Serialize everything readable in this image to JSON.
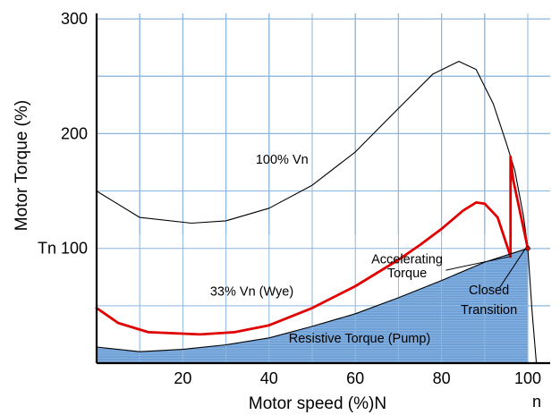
{
  "chart_data": {
    "type": "line",
    "xlabel": "Motor speed (%)N",
    "ylabel": "Motor Torque (%)",
    "x_ticks": [
      {
        "value": 20,
        "label": "20"
      },
      {
        "value": 40,
        "label": "40"
      },
      {
        "value": 60,
        "label": "60"
      },
      {
        "value": 80,
        "label": "80"
      },
      {
        "value": 100,
        "label": "100"
      }
    ],
    "y_ticks": [
      {
        "value": 300,
        "label": "300"
      },
      {
        "value": 200,
        "label": "200"
      },
      {
        "value": 100,
        "label": "Tn 100"
      }
    ],
    "x_end_label": "n",
    "xlim": [
      0,
      112
    ],
    "ylim": [
      0,
      300
    ],
    "grid": true,
    "series": [
      {
        "name": "100% Vn",
        "color": "#000000",
        "points": [
          [
            0,
            150
          ],
          [
            10,
            127
          ],
          [
            22,
            122
          ],
          [
            30,
            124
          ],
          [
            40,
            135
          ],
          [
            50,
            155
          ],
          [
            60,
            184
          ],
          [
            70,
            222
          ],
          [
            78,
            252
          ],
          [
            84,
            263
          ],
          [
            88,
            256
          ],
          [
            92,
            226
          ],
          [
            95,
            192
          ],
          [
            97,
            168
          ],
          [
            99,
            128
          ],
          [
            100,
            100
          ],
          [
            101,
            45
          ],
          [
            102,
            0
          ]
        ]
      },
      {
        "name": "33% Vn (Wye)",
        "color": "#e00000",
        "points": [
          [
            0,
            48
          ],
          [
            5,
            35
          ],
          [
            12,
            27
          ],
          [
            24,
            25
          ],
          [
            32,
            27
          ],
          [
            40,
            33
          ],
          [
            50,
            48
          ],
          [
            60,
            67
          ],
          [
            70,
            90
          ],
          [
            75,
            103
          ],
          [
            80,
            117
          ],
          [
            85,
            133
          ],
          [
            88,
            140
          ],
          [
            90,
            139
          ],
          [
            93,
            127
          ],
          [
            96,
            93
          ]
        ]
      },
      {
        "name": "Closed Transition",
        "color": "#e00000",
        "points": [
          [
            96,
            93
          ],
          [
            96,
            180
          ],
          [
            96.6,
            160
          ],
          [
            100,
            100
          ]
        ]
      },
      {
        "name": "Resistive Torque (Pump)",
        "color": "#000000",
        "fill": "#6fa0d8",
        "points": [
          [
            0,
            14
          ],
          [
            10,
            10
          ],
          [
            20,
            12
          ],
          [
            30,
            16
          ],
          [
            40,
            22
          ],
          [
            50,
            32
          ],
          [
            60,
            43
          ],
          [
            70,
            57
          ],
          [
            80,
            72
          ],
          [
            90,
            88
          ],
          [
            100,
            100
          ]
        ]
      }
    ],
    "annotations": [
      {
        "text": "100% Vn",
        "x": 43,
        "y": 174
      },
      {
        "text": "33% Vn (Wye)",
        "x": 36,
        "y": 59
      },
      {
        "text": "Accelerating",
        "x": 72,
        "y": 87
      },
      {
        "text": "Torque",
        "x": 72,
        "y": 75
      },
      {
        "text": "Closed",
        "x": 91,
        "y": 60
      },
      {
        "text": "Transition",
        "x": 91,
        "y": 43
      },
      {
        "text": "Resistive Torque (Pump)",
        "x": 61,
        "y": 18
      }
    ]
  }
}
